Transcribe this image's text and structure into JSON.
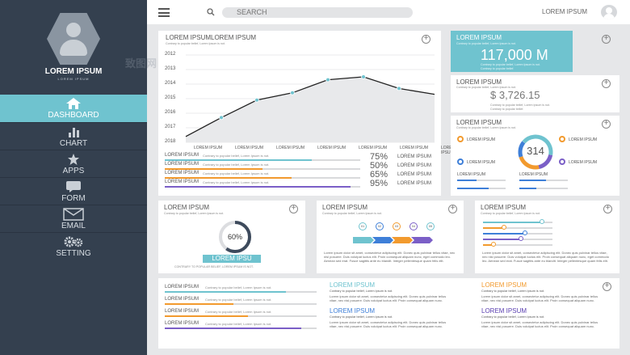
{
  "sidebar": {
    "profile_name": "LOREM IPSUM",
    "profile_sub": "LOREM IPSUM",
    "items": [
      {
        "label": "DASHBOARD",
        "icon": "home-icon"
      },
      {
        "label": "CHART",
        "icon": "bar-chart-icon"
      },
      {
        "label": "APPS",
        "icon": "star-icon"
      },
      {
        "label": "FORM",
        "icon": "speech-bubble-icon"
      },
      {
        "label": "EMAIL",
        "icon": "envelope-icon"
      },
      {
        "label": "SETTING",
        "icon": "gears-icon"
      }
    ]
  },
  "topbar": {
    "search_placeholder": "SEARCH",
    "user": "LOREM IPSUM"
  },
  "colors": {
    "accent": "#6fc3cf",
    "sidebar": "#34404f",
    "orange": "#f29a2e",
    "purple": "#7b5fc7",
    "blue": "#3e7fd8"
  },
  "main_chart": {
    "title": "LOREM IPSUMLOREM IPSUM",
    "sub": "Contrary to popular belief, Lorem Ipsum is not.",
    "chart_data": {
      "type": "line",
      "x": [
        1,
        2,
        3,
        4,
        5,
        6,
        7,
        8
      ],
      "y": [
        2017.6,
        2016.3,
        2015.1,
        2014.6,
        2013.7,
        2013.5,
        2014.3,
        2014.7
      ],
      "y_ticks": [
        "2012",
        "2013",
        "2014",
        "2015",
        "2016",
        "2017",
        "2018"
      ],
      "ylim": [
        2012,
        2018
      ],
      "x_ticks": [
        "LOREM IPSUM",
        "LOREM IPSUM",
        "LOREM IPSUM",
        "LOREM IPSUM",
        "LOREM IPSUM",
        "LOREM IPSUM",
        "LOREM IPSUM"
      ]
    },
    "bars": [
      {
        "label": "LOREM IPSUM",
        "sub": "Contrary to popular belief, Lorem Ipsum is not.",
        "pct_text": "75%",
        "caption": "LOREM IPSUM",
        "value": 0.75,
        "color": "#6fc3cf"
      },
      {
        "label": "LOREM IPSUM",
        "sub": "Contrary to popular belief, Lorem Ipsum is not.",
        "pct_text": "50%",
        "caption": "LOREM IPSUM",
        "value": 0.5,
        "color": "#f29a2e"
      },
      {
        "label": "LOREM IPSUM",
        "sub": "Contrary to popular belief, Lorem Ipsum is not.",
        "pct_text": "65%",
        "caption": "LOREM IPSUM",
        "value": 0.65,
        "color": "#f29a2e"
      },
      {
        "label": "LOREM IPSUM",
        "sub": "Contrary to popular belief, Lorem Ipsum is not.",
        "pct_text": "95%",
        "caption": "LOREM IPSUM",
        "value": 0.95,
        "color": "#7b5fc7"
      }
    ]
  },
  "stat1": {
    "title": "LOREM IPSUM",
    "sub": "Contrary to popular belief, Lorem Ipsum is not.",
    "value": "117,000 M",
    "sub2": "Contrary to popular belief, Lorem Ipsum is not.",
    "sub3": "Contrary to popular belief."
  },
  "stat2": {
    "title": "LOREM IPSUM",
    "sub": "Contrary to popular belief, Lorem Ipsum is not.",
    "value": "$ 3,726.15",
    "sub2": "Contrary to popular belief, Lorem Ipsum is not.",
    "sub3": "Contrary to popular belief."
  },
  "donut_card": {
    "title": "LOREM IPSUM",
    "sub": "Contrary to popular belief, Lorem Ipsum is not.",
    "center": "314",
    "legend": [
      "LOREM IPSUM",
      "LOREM IPSUM",
      "LOREM IPSUM",
      "LOREM IPSUM",
      "LOREM IPSUM",
      "LOREM IPSUM"
    ]
  },
  "gauge_card": {
    "title": "LOREM IPSUM",
    "sub": "Contrary to popular belief, Lorem Ipsum is not.",
    "pct": "60%",
    "value": 0.6,
    "label": "LOREM IPSU",
    "caption": "CONTRARY TO POPULAR BELIEF, LOREM IPSUM IS NOT."
  },
  "flow_card": {
    "title": "LOREM IPSUM",
    "sub": "Contrary to popular belief, Lorem Ipsum is not.",
    "steps": [
      "01",
      "02",
      "03",
      "04",
      "05"
    ],
    "para": "Lorem ipsum dolor sit amet, consectetur adipiscing elit. Donec quis pulvinar tellus vitae, nec nisl posuere. Duis volutpat luctus elit. Proin consequat aliquam nunc, eget commodo leo. Aenean sed erat. Fusce sagittis ante eu blandit. Integer pellentesque quam felis elit."
  },
  "slider_card": {
    "title": "LOREM IPSUM",
    "sub": "Contrary to popular belief, Lorem Ipsum is not.",
    "para": "Lorem ipsum dolor sit amet, consectetur adipiscing elit. Donec quis pulvinar tellus vitae, nec nisl posuere. Duis volutpat luctus elit. Proin consequat aliquam nunc, eget commodo leo. Aenean sed erat. Fusce sagittis ante eu blandit. Integer pellentesque quam felis elit."
  },
  "bottom_bars": [
    {
      "label": "LOREM IPSUM",
      "sub": "Contrary to popular belief, Lorem Ipsum is not.",
      "value": 0.8,
      "color": "#6fc3cf"
    },
    {
      "label": "LOREM IPSUM",
      "sub": "Contrary to popular belief, Lorem Ipsum is not.",
      "value": 0.45,
      "color": "#f29a2e"
    },
    {
      "label": "LOREM IPSUM",
      "sub": "Contrary to popular belief, Lorem Ipsum is not.",
      "value": 0.55,
      "color": "#f29a2e"
    },
    {
      "label": "LOREM IPSUM",
      "sub": "Contrary to popular belief, Lorem Ipsum is not.",
      "value": 0.9,
      "color": "#7b5fc7"
    }
  ],
  "text_block_1": [
    {
      "title": "LOREM IPSUM",
      "sub": "Contrary to popular belief, Lorem Ipsum is not.",
      "color": "#6fc3cf",
      "para": "Lorem ipsum dolor sit amet, consectetur adipiscing elit. Donec quis pulvinar tellus vitae, nec nisl posuere. Duis volutpat luctus elit. Proin consequat aliquam nunc."
    },
    {
      "title": "LOREM IPSUM",
      "sub": "Contrary to popular belief, Lorem Ipsum is not.",
      "color": "#3e7fd8",
      "para": "Lorem ipsum dolor sit amet, consectetur adipiscing elit. Donec quis pulvinar tellus vitae, nec nisl posuere. Duis volutpat luctus elit. Proin consequat aliquam nunc."
    }
  ],
  "text_block_2": [
    {
      "title": "LOREM IPSUM",
      "sub": "Contrary to popular belief, Lorem Ipsum is not.",
      "color": "#f29a2e",
      "para": "Lorem ipsum dolor sit amet, consectetur adipiscing elit. Donec quis pulvinar tellus vitae, nec nisl posuere. Duis volutpat luctus elit. Proin consequat aliquam nunc."
    },
    {
      "title": "LOREM IPSUM",
      "sub": "Contrary to popular belief, Lorem Ipsum is not.",
      "color": "#5a3fb0",
      "para": "Lorem ipsum dolor sit amet, consectetur adipiscing elit. Donec quis pulvinar tellus vitae, nec nisl posuere. Duis volutpat luctus elit. Proin consequat aliquam nunc."
    }
  ]
}
